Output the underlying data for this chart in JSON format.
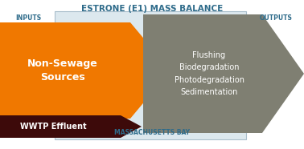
{
  "title": "ESTRONE (E1) MASS BALANCE",
  "title_color": "#2e6b8a",
  "title_fontsize": 7.5,
  "inputs_label": "INPUTS",
  "outputs_label": "OUTPUTS",
  "bay_label": "MASSACHUSETTS BAY",
  "label_color": "#2e6b8a",
  "label_fontsize": 5.5,
  "bg_box_color": "#dce8ee",
  "bg_box_edgecolor": "#aabfcc",
  "orange_arrow_color": "#f07800",
  "gray_arrow_color": "#7f7f72",
  "dark_arrow_color": "#3d0a0a",
  "white_text": "#ffffff",
  "nonsewage_text": "Non-Sewage\nSources",
  "nonsewage_fontsize": 9,
  "wwtp_text": "WWTP Effluent",
  "wwtp_fontsize": 7,
  "output_text": "Flushing\nBiodegradation\nPhotodegradation\nSedimentation",
  "output_fontsize": 7.0,
  "fig_width": 3.78,
  "fig_height": 1.86,
  "dpi": 100
}
